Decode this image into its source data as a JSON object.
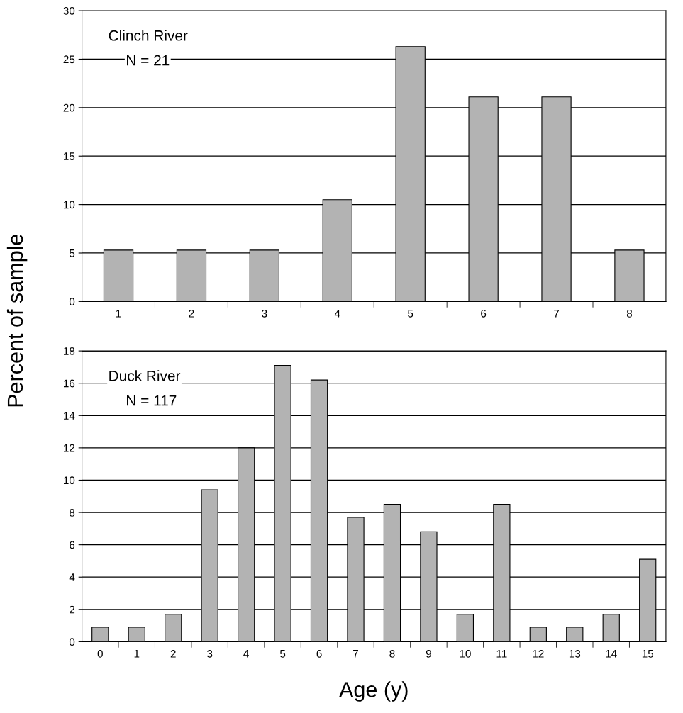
{
  "chart_data": [
    {
      "type": "bar",
      "ylabel": "Percent of sample",
      "categories": [
        "1",
        "2",
        "3",
        "4",
        "5",
        "6",
        "7",
        "8"
      ],
      "values": [
        5.3,
        5.3,
        5.3,
        10.5,
        26.3,
        21.1,
        21.1,
        5.3
      ],
      "color": "#b3b3b3",
      "ylim": [
        0,
        30
      ],
      "yticks": [
        0,
        5,
        10,
        15,
        20,
        25,
        30
      ],
      "grid": "y",
      "annotations": [
        "Clinch River",
        "N = 21"
      ]
    },
    {
      "type": "bar",
      "xlabel": "Age (y)",
      "categories": [
        "0",
        "1",
        "2",
        "3",
        "4",
        "5",
        "6",
        "7",
        "8",
        "9",
        "10",
        "11",
        "12",
        "13",
        "14",
        "15"
      ],
      "values": [
        0.9,
        0.9,
        1.7,
        9.4,
        12.0,
        17.1,
        16.2,
        7.7,
        8.5,
        6.8,
        1.7,
        8.5,
        0.9,
        0.9,
        1.7,
        5.1
      ],
      "color": "#b3b3b3",
      "ylim": [
        0,
        18
      ],
      "yticks": [
        0,
        2,
        4,
        6,
        8,
        10,
        12,
        14,
        16,
        18
      ],
      "grid": "y",
      "annotations": [
        "Duck River",
        "N = 117"
      ]
    }
  ]
}
